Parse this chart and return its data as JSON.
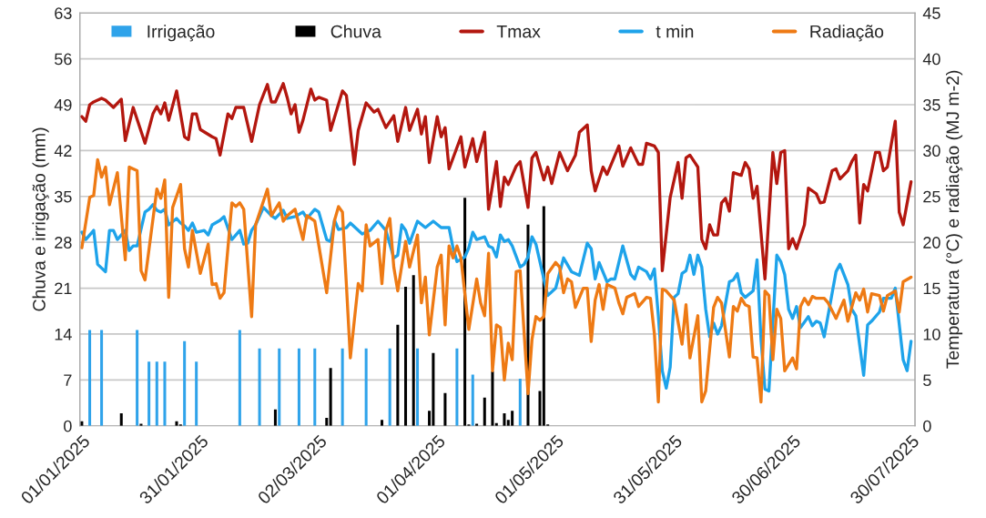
{
  "chart_data": {
    "type": "bar",
    "ylabel": "Chuva e irrigação (mm)",
    "y2label": "Temperatura (°C) e radiação (MJ m-2)",
    "xlim": [
      "2024-12-31T12:00",
      "2025-07-31T00:00"
    ],
    "xticks": [
      {
        "value": "2025-01-01",
        "label": "01/01/2025"
      },
      {
        "value": "2025-01-31",
        "label": "31/01/2025"
      },
      {
        "value": "2025-03-02",
        "label": "02/03/2025"
      },
      {
        "value": "2025-04-01",
        "label": "01/04/2025"
      },
      {
        "value": "2025-05-01",
        "label": "01/05/2025"
      },
      {
        "value": "2025-05-31",
        "label": "31/05/2025"
      },
      {
        "value": "2025-06-30",
        "label": "30/06/2025"
      },
      {
        "value": "2025-07-30",
        "label": "30/07/2025"
      }
    ],
    "ylim": [
      0,
      63
    ],
    "yticks": [
      0,
      7,
      14,
      21,
      28,
      35,
      42,
      49,
      56,
      63
    ],
    "y2lim": [
      0,
      45
    ],
    "y2ticks": [
      0,
      5,
      10,
      15,
      20,
      25,
      30,
      35,
      40,
      45
    ],
    "grid": "y",
    "legend": "top",
    "marker": "none",
    "line_style": "solid",
    "series": [
      {
        "name": "Irrigação",
        "color": "#2fa3ea",
        "x": [
          "2025-01-03",
          "2025-01-06",
          "2025-01-15",
          "2025-01-18",
          "2025-01-20",
          "2025-01-22",
          "2025-01-27",
          "2025-01-30",
          "2025-02-10",
          "2025-02-15",
          "2025-02-20",
          "2025-02-25",
          "2025-03-01",
          "2025-03-08",
          "2025-03-14",
          "2025-03-20",
          "2025-03-27",
          "2025-04-06",
          "2025-04-10",
          "2025-04-22"
        ],
        "values": [
          14.6,
          14.6,
          14.6,
          9.8,
          9.8,
          9.8,
          12.9,
          9.8,
          14.6,
          11.8,
          11.8,
          11.8,
          11.8,
          11.8,
          11.8,
          11.8,
          11.8,
          11.8,
          7.8,
          7.2
        ]
      },
      {
        "name": "Chuva",
        "color": "#000000",
        "x": [
          "2025-01-01",
          "2025-01-11",
          "2025-01-16",
          "2025-01-25",
          "2025-01-26",
          "2025-02-19",
          "2025-03-04",
          "2025-03-05",
          "2025-03-18",
          "2025-03-22",
          "2025-03-24",
          "2025-03-26",
          "2025-03-30",
          "2025-03-31",
          "2025-04-03",
          "2025-04-08",
          "2025-04-09",
          "2025-04-11",
          "2025-04-13",
          "2025-04-15",
          "2025-04-16",
          "2025-04-18",
          "2025-04-19",
          "2025-04-20",
          "2025-04-24",
          "2025-04-27",
          "2025-04-28",
          "2025-04-29"
        ],
        "values": [
          0.7,
          1.9,
          0.3,
          0.7,
          0.2,
          2.5,
          1.2,
          8.8,
          0.9,
          15.4,
          21.2,
          23.0,
          2.3,
          11.1,
          5.0,
          34.8,
          0.2,
          0.3,
          4.3,
          8.3,
          0.4,
          1.9,
          0.9,
          2.3,
          30.7,
          5.3,
          33.5,
          0.2
        ]
      },
      {
        "name": "Tmax",
        "type": "line",
        "axis": "y2",
        "color": "#b3170f",
        "x": [
          "2025-01-01",
          "2025-01-02",
          "2025-01-03",
          "2025-01-04",
          "2025-01-06",
          "2025-01-07",
          "2025-01-09",
          "2025-01-11",
          "2025-01-12",
          "2025-01-14",
          "2025-01-17",
          "2025-01-19",
          "2025-01-20",
          "2025-01-21",
          "2025-01-22",
          "2025-01-23",
          "2025-01-25",
          "2025-01-27",
          "2025-01-28",
          "2025-01-29",
          "2025-01-30",
          "2025-01-31",
          "2025-02-03",
          "2025-02-04",
          "2025-02-05",
          "2025-02-07",
          "2025-02-08",
          "2025-02-09",
          "2025-02-11",
          "2025-02-13",
          "2025-02-15",
          "2025-02-17",
          "2025-02-18",
          "2025-02-19",
          "2025-02-21",
          "2025-02-22",
          "2025-02-23",
          "2025-02-24",
          "2025-02-25",
          "2025-02-26",
          "2025-02-28",
          "2025-03-01",
          "2025-03-02",
          "2025-03-04",
          "2025-03-05",
          "2025-03-08",
          "2025-03-09",
          "2025-03-11",
          "2025-03-12",
          "2025-03-14",
          "2025-03-16",
          "2025-03-17",
          "2025-03-19",
          "2025-03-21",
          "2025-03-22",
          "2025-03-24",
          "2025-03-25",
          "2025-03-27",
          "2025-03-28",
          "2025-03-29",
          "2025-03-30",
          "2025-04-01",
          "2025-04-02",
          "2025-04-03",
          "2025-04-04",
          "2025-04-07",
          "2025-04-08",
          "2025-04-10",
          "2025-04-11",
          "2025-04-13",
          "2025-04-14",
          "2025-04-16",
          "2025-04-17",
          "2025-04-18",
          "2025-04-19",
          "2025-04-21",
          "2025-04-22",
          "2025-04-24",
          "2025-04-25",
          "2025-04-26",
          "2025-04-28",
          "2025-04-29",
          "2025-04-30",
          "2025-05-02",
          "2025-05-04",
          "2025-05-06",
          "2025-05-07",
          "2025-05-09",
          "2025-05-10",
          "2025-05-11",
          "2025-05-13",
          "2025-05-14",
          "2025-05-17",
          "2025-05-18",
          "2025-05-20",
          "2025-05-22",
          "2025-05-23",
          "2025-05-24",
          "2025-05-26",
          "2025-05-27",
          "2025-05-28",
          "2025-05-30",
          "2025-06-01",
          "2025-06-02",
          "2025-06-03",
          "2025-06-04",
          "2025-06-06",
          "2025-06-07",
          "2025-06-08",
          "2025-06-09",
          "2025-06-10",
          "2025-06-11",
          "2025-06-12",
          "2025-06-13",
          "2025-06-14",
          "2025-06-15",
          "2025-06-17",
          "2025-06-18",
          "2025-06-19",
          "2025-06-20",
          "2025-06-21",
          "2025-06-23",
          "2025-06-25",
          "2025-06-26",
          "2025-06-27",
          "2025-06-28",
          "2025-06-29",
          "2025-06-30",
          "2025-07-01",
          "2025-07-03",
          "2025-07-04",
          "2025-07-06",
          "2025-07-07",
          "2025-07-08",
          "2025-07-10",
          "2025-07-11",
          "2025-07-12",
          "2025-07-14",
          "2025-07-15",
          "2025-07-16",
          "2025-07-17",
          "2025-07-18",
          "2025-07-19",
          "2025-07-21",
          "2025-07-22",
          "2025-07-23",
          "2025-07-24",
          "2025-07-26",
          "2025-07-27",
          "2025-07-28",
          "2025-07-30"
        ],
        "values": [
          33.7,
          33.2,
          35.0,
          35.3,
          35.7,
          35.5,
          34.7,
          35.6,
          31.1,
          34.7,
          30.8,
          34.0,
          34.8,
          34.0,
          35.2,
          33.3,
          36.5,
          31.5,
          31.2,
          34.0,
          34.0,
          32.3,
          31.5,
          31.3,
          29.5,
          34.0,
          33.5,
          34.7,
          34.7,
          31.0,
          35.0,
          37.2,
          35.3,
          35.3,
          37.3,
          35.8,
          34.0,
          35.0,
          32.0,
          33.3,
          36.7,
          35.5,
          35.8,
          35.5,
          32.2,
          36.5,
          36.0,
          28.5,
          32.2,
          35.2,
          34.2,
          34.5,
          32.5,
          33.8,
          31.0,
          34.7,
          32.2,
          34.5,
          31.8,
          33.7,
          28.7,
          33.7,
          31.5,
          32.5,
          28.0,
          31.5,
          28.2,
          31.3,
          28.8,
          32.0,
          23.6,
          28.8,
          23.9,
          27.1,
          26.3,
          28.3,
          28.8,
          23.8,
          29.2,
          29.8,
          26.8,
          28.2,
          26.4,
          29.8,
          27.8,
          29.5,
          32.0,
          32.8,
          27.8,
          25.6,
          28.2,
          27.4,
          30.5,
          28.3,
          30.3,
          28.5,
          28.5,
          30.8,
          30.5,
          29.8,
          16.9,
          24.9,
          28.7,
          24.8,
          29.2,
          29.5,
          28.2,
          20.3,
          19.3,
          21.9,
          20.8,
          20.8,
          24.3,
          24.8,
          23.4,
          27.6,
          27.3,
          28.7,
          28.0,
          24.8,
          26.1,
          16.0,
          29.8,
          26.4,
          29.8,
          30.0,
          19.3,
          20.4,
          19.3,
          21.9,
          25.9,
          25.3,
          24.3,
          24.4,
          27.8,
          28.0,
          26.9,
          27.8,
          28.8,
          29.5,
          22.1,
          26.3,
          25.6,
          29.8,
          29.8,
          27.8,
          28.2,
          33.2,
          23.3,
          21.9,
          26.6
        ]
      },
      {
        "name": "t min",
        "type": "line",
        "axis": "y2",
        "color": "#1ea3ea",
        "x": [
          "2025-01-01",
          "2025-01-02",
          "2025-01-04",
          "2025-01-05",
          "2025-01-07",
          "2025-01-08",
          "2025-01-09",
          "2025-01-10",
          "2025-01-12",
          "2025-01-13",
          "2025-01-14",
          "2025-01-15",
          "2025-01-17",
          "2025-01-18",
          "2025-01-19",
          "2025-01-20",
          "2025-01-21",
          "2025-01-22",
          "2025-01-23",
          "2025-01-25",
          "2025-01-26",
          "2025-01-27",
          "2025-01-28",
          "2025-01-29",
          "2025-01-30",
          "2025-02-01",
          "2025-02-02",
          "2025-02-03",
          "2025-02-05",
          "2025-02-06",
          "2025-02-08",
          "2025-02-10",
          "2025-02-11",
          "2025-02-12",
          "2025-02-13",
          "2025-02-14",
          "2025-02-16",
          "2025-02-18",
          "2025-02-19",
          "2025-02-21",
          "2025-02-22",
          "2025-02-24",
          "2025-02-26",
          "2025-02-27",
          "2025-03-01",
          "2025-03-02",
          "2025-03-04",
          "2025-03-05",
          "2025-03-06",
          "2025-03-07",
          "2025-03-09",
          "2025-03-10",
          "2025-03-12",
          "2025-03-13",
          "2025-03-15",
          "2025-03-17",
          "2025-03-19",
          "2025-03-21",
          "2025-03-22",
          "2025-03-23",
          "2025-03-24",
          "2025-03-25",
          "2025-03-27",
          "2025-03-29",
          "2025-03-31",
          "2025-04-02",
          "2025-04-04",
          "2025-04-05",
          "2025-04-06",
          "2025-04-08",
          "2025-04-09",
          "2025-04-10",
          "2025-04-11",
          "2025-04-13",
          "2025-04-14",
          "2025-04-15",
          "2025-04-16",
          "2025-04-17",
          "2025-04-18",
          "2025-04-19",
          "2025-04-20",
          "2025-04-22",
          "2025-04-23",
          "2025-04-24",
          "2025-04-25",
          "2025-04-26",
          "2025-04-28",
          "2025-04-29",
          "2025-05-01",
          "2025-05-03",
          "2025-05-05",
          "2025-05-07",
          "2025-05-09",
          "2025-05-10",
          "2025-05-11",
          "2025-05-12",
          "2025-05-14",
          "2025-05-15",
          "2025-05-16",
          "2025-05-18",
          "2025-05-20",
          "2025-05-21",
          "2025-05-22",
          "2025-05-24",
          "2025-05-25",
          "2025-05-26",
          "2025-05-27",
          "2025-05-28",
          "2025-05-29",
          "2025-05-30",
          "2025-05-31",
          "2025-06-01",
          "2025-06-02",
          "2025-06-03",
          "2025-06-04",
          "2025-06-05",
          "2025-06-06",
          "2025-06-07",
          "2025-06-08",
          "2025-06-09",
          "2025-06-10",
          "2025-06-11",
          "2025-06-12",
          "2025-06-14",
          "2025-06-15",
          "2025-06-16",
          "2025-06-17",
          "2025-06-18",
          "2025-06-20",
          "2025-06-21",
          "2025-06-22",
          "2025-06-23",
          "2025-06-24",
          "2025-06-26",
          "2025-06-27",
          "2025-06-28",
          "2025-06-29",
          "2025-06-30",
          "2025-07-01",
          "2025-07-02",
          "2025-07-04",
          "2025-07-05",
          "2025-07-06",
          "2025-07-07",
          "2025-07-08",
          "2025-07-11",
          "2025-07-12",
          "2025-07-14",
          "2025-07-15",
          "2025-07-16",
          "2025-07-18",
          "2025-07-19",
          "2025-07-20",
          "2025-07-22",
          "2025-07-23",
          "2025-07-25",
          "2025-07-26",
          "2025-07-28",
          "2025-07-29",
          "2025-07-30"
        ],
        "values": [
          21.1,
          20.3,
          21.3,
          17.6,
          16.8,
          21.3,
          21.3,
          20.3,
          21.3,
          19.1,
          19.6,
          19.6,
          23.3,
          23.6,
          24.1,
          23.5,
          23.3,
          23.6,
          21.9,
          22.6,
          22.1,
          21.8,
          21.3,
          22.1,
          21.1,
          21.3,
          20.8,
          21.9,
          22.4,
          22.8,
          20.3,
          21.3,
          19.8,
          19.9,
          21.3,
          21.9,
          23.8,
          22.9,
          22.6,
          23.5,
          22.6,
          22.8,
          23.3,
          22.6,
          23.6,
          23.3,
          20.3,
          20.1,
          22.4,
          21.4,
          21.6,
          22.1,
          21.3,
          20.9,
          21.3,
          22.3,
          21.3,
          18.3,
          18.6,
          21.9,
          21.3,
          19.9,
          22.3,
          21.6,
          22.3,
          21.6,
          21.6,
          19.4,
          17.9,
          18.4,
          19.4,
          21.1,
          20.3,
          20.6,
          19.6,
          19.4,
          18.4,
          20.8,
          20.1,
          20.3,
          19.6,
          17.3,
          17.6,
          18.4,
          20.6,
          19.8,
          16.0,
          14.2,
          15.0,
          18.3,
          16.8,
          16.4,
          19.9,
          19.3,
          16.0,
          17.8,
          15.7,
          16.0,
          16.0,
          19.6,
          16.5,
          16.0,
          17.3,
          16.8,
          16.0,
          17.1,
          12.0,
          6.0,
          4.1,
          6.4,
          14.0,
          14.4,
          16.6,
          16.9,
          18.6,
          16.5,
          18.6,
          17.3,
          12.7,
          9.7,
          11.2,
          10.0,
          10.9,
          15.7,
          15.9,
          16.6,
          14.5,
          14.0,
          14.7,
          18.1,
          9.4,
          4.0,
          3.8,
          18.6,
          17.9,
          16.5,
          12.7,
          11.7,
          13.0,
          10.7,
          11.9,
          10.9,
          11.4,
          11.2,
          9.7,
          16.8,
          17.6,
          15.4,
          12.7,
          12.0,
          5.5,
          11.0,
          11.4,
          12.4,
          13.9,
          13.9,
          15.0,
          7.2,
          6.0,
          9.2
        ]
      },
      {
        "name": "Radiação",
        "type": "line",
        "axis": "y2",
        "color": "#ee7a14",
        "x": [
          "2025-01-01",
          "2025-01-03",
          "2025-01-04",
          "2025-01-05",
          "2025-01-06",
          "2025-01-07",
          "2025-01-08",
          "2025-01-10",
          "2025-01-12",
          "2025-01-13",
          "2025-01-15",
          "2025-01-16",
          "2025-01-17",
          "2025-01-20",
          "2025-01-21",
          "2025-01-22",
          "2025-01-23",
          "2025-01-24",
          "2025-01-26",
          "2025-01-27",
          "2025-01-28",
          "2025-01-29",
          "2025-01-31",
          "2025-02-02",
          "2025-02-03",
          "2025-02-04",
          "2025-02-05",
          "2025-02-06",
          "2025-02-08",
          "2025-02-09",
          "2025-02-10",
          "2025-02-11",
          "2025-02-13",
          "2025-02-14",
          "2025-02-17",
          "2025-02-18",
          "2025-02-20",
          "2025-02-21",
          "2025-02-22",
          "2025-02-24",
          "2025-02-26",
          "2025-02-27",
          "2025-03-01",
          "2025-03-04",
          "2025-03-06",
          "2025-03-07",
          "2025-03-08",
          "2025-03-10",
          "2025-03-12",
          "2025-03-13",
          "2025-03-14",
          "2025-03-15",
          "2025-03-17",
          "2025-03-18",
          "2025-03-19",
          "2025-03-20",
          "2025-03-21",
          "2025-03-22",
          "2025-03-24",
          "2025-03-25",
          "2025-03-27",
          "2025-03-28",
          "2025-03-29",
          "2025-03-30",
          "2025-04-01",
          "2025-04-02",
          "2025-04-03",
          "2025-04-04",
          "2025-04-05",
          "2025-04-06",
          "2025-04-07",
          "2025-04-09",
          "2025-04-11",
          "2025-04-12",
          "2025-04-13",
          "2025-04-14",
          "2025-04-15",
          "2025-04-16",
          "2025-04-17",
          "2025-04-18",
          "2025-04-19",
          "2025-04-20",
          "2025-04-21",
          "2025-04-22",
          "2025-04-24",
          "2025-04-25",
          "2025-04-26",
          "2025-04-27",
          "2025-04-28",
          "2025-04-29",
          "2025-05-01",
          "2025-05-02",
          "2025-05-03",
          "2025-05-04",
          "2025-05-05",
          "2025-05-06",
          "2025-05-08",
          "2025-05-09",
          "2025-05-10",
          "2025-05-11",
          "2025-05-12",
          "2025-05-13",
          "2025-05-14",
          "2025-05-16",
          "2025-05-17",
          "2025-05-18",
          "2025-05-19",
          "2025-05-21",
          "2025-05-22",
          "2025-05-24",
          "2025-05-25",
          "2025-05-26",
          "2025-05-27",
          "2025-05-28",
          "2025-05-29",
          "2025-05-31",
          "2025-06-02",
          "2025-06-03",
          "2025-06-04",
          "2025-06-06",
          "2025-06-07",
          "2025-06-08",
          "2025-06-10",
          "2025-06-11",
          "2025-06-12",
          "2025-06-14",
          "2025-06-15",
          "2025-06-16",
          "2025-06-17",
          "2025-06-18",
          "2025-06-19",
          "2025-06-20",
          "2025-06-21",
          "2025-06-22",
          "2025-06-23",
          "2025-06-24",
          "2025-06-25",
          "2025-06-26",
          "2025-06-27",
          "2025-06-28",
          "2025-06-30",
          "2025-07-01",
          "2025-07-02",
          "2025-07-03",
          "2025-07-04",
          "2025-07-05",
          "2025-07-06",
          "2025-07-08",
          "2025-07-09",
          "2025-07-11",
          "2025-07-13",
          "2025-07-14",
          "2025-07-16",
          "2025-07-17",
          "2025-07-18",
          "2025-07-19",
          "2025-07-20",
          "2025-07-22",
          "2025-07-23",
          "2025-07-24",
          "2025-07-26",
          "2025-07-27",
          "2025-07-28",
          "2025-07-30"
        ],
        "values": [
          19.4,
          24.9,
          25.1,
          29.0,
          27.1,
          28.2,
          24.1,
          27.6,
          18.1,
          28.2,
          27.8,
          16.9,
          15.9,
          25.8,
          24.8,
          26.8,
          14.0,
          23.8,
          26.3,
          19.3,
          17.3,
          21.3,
          16.6,
          19.8,
          15.4,
          15.5,
          13.9,
          14.5,
          24.3,
          23.9,
          24.3,
          23.6,
          11.9,
          21.9,
          25.8,
          22.9,
          24.3,
          22.3,
          22.9,
          23.6,
          20.3,
          22.9,
          22.3,
          14.5,
          22.4,
          23.9,
          23.3,
          7.4,
          15.5,
          14.7,
          21.9,
          19.6,
          20.3,
          15.5,
          21.3,
          22.6,
          17.3,
          14.7,
          20.1,
          17.3,
          20.8,
          13.4,
          16.2,
          9.9,
          17.3,
          18.6,
          11.0,
          19.6,
          18.3,
          19.6,
          18.3,
          10.5,
          16.0,
          13.4,
          12.0,
          18.8,
          6.0,
          11.0,
          10.7,
          5.0,
          9.0,
          7.2,
          16.8,
          16.9,
          3.5,
          9.4,
          11.9,
          11.5,
          11.9,
          16.6,
          17.8,
          17.3,
          14.5,
          16.0,
          15.7,
          12.9,
          15.0,
          15.0,
          9.2,
          13.7,
          15.4,
          12.7,
          15.4,
          15.0,
          13.4,
          12.2,
          14.0,
          14.4,
          13.0,
          14.0,
          13.9,
          10.0,
          2.6,
          14.9,
          14.7,
          13.7,
          8.9,
          13.2,
          7.4,
          12.0,
          2.6,
          3.8,
          12.9,
          14.0,
          13.4,
          7.5,
          13.0,
          12.5,
          13.9,
          13.2,
          13.0,
          7.5,
          7.4,
          2.6,
          14.7,
          14.2,
          7.2,
          12.7,
          11.7,
          6.0,
          7.4,
          6.2,
          13.0,
          13.9,
          13.2,
          14.1,
          13.9,
          13.9,
          13.4,
          11.7,
          13.7,
          11.4,
          14.5,
          13.7,
          14.9,
          12.4,
          14.4,
          14.2,
          12.5,
          14.2,
          14.7,
          12.4,
          15.7,
          16.2
        ]
      }
    ]
  }
}
